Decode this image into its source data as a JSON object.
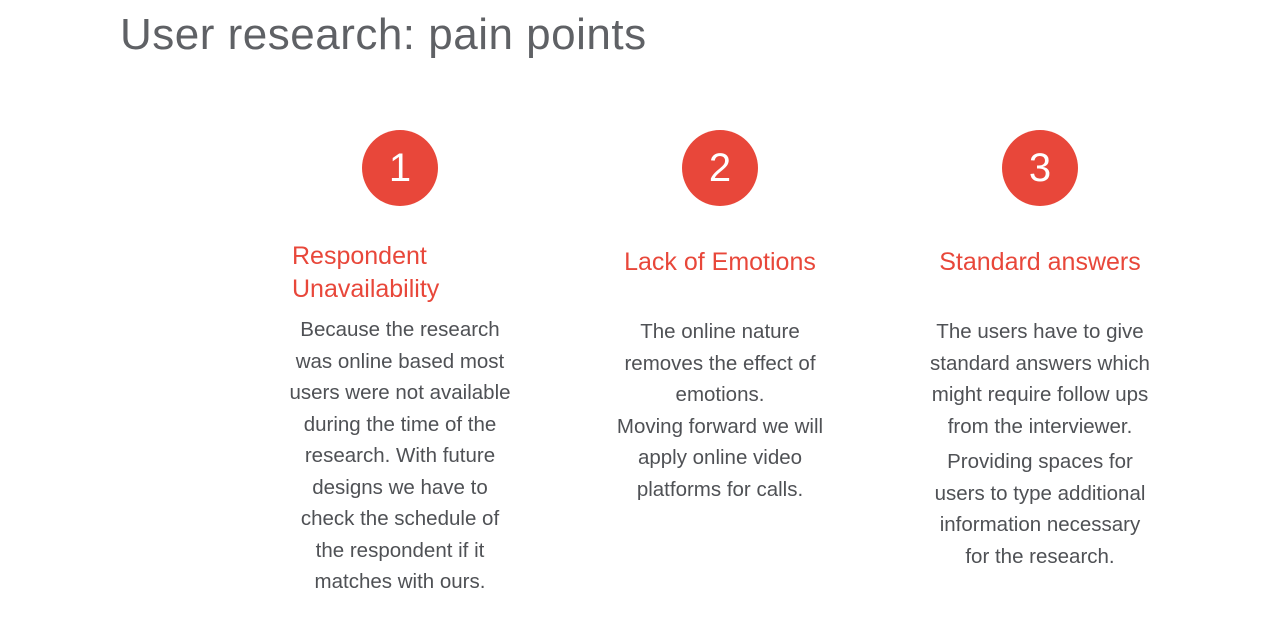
{
  "slide": {
    "title": "User research: pain points"
  },
  "points": [
    {
      "number": "1",
      "heading_lines": [
        "Respondent",
        "Unavailability"
      ],
      "paragraphs": [
        [
          "Because the research",
          "was online based most",
          "users were not available",
          "during the time of the",
          "research. With future",
          "designs we have to",
          "check the schedule of",
          "the respondent if it",
          "matches with ours."
        ]
      ]
    },
    {
      "number": "2",
      "heading_lines": [
        "Lack of Emotions"
      ],
      "paragraphs": [
        [
          "The online nature",
          "removes the effect of",
          "emotions."
        ],
        [
          "Moving forward we will",
          "apply online video",
          "platforms for calls."
        ]
      ]
    },
    {
      "number": "3",
      "heading_lines": [
        "Standard answers"
      ],
      "paragraphs": [
        [
          "The users have to give",
          "standard answers which",
          "might require follow ups",
          "from the interviewer."
        ],
        [
          "Providing spaces for",
          "users to type additional",
          "information necessary",
          "for the research."
        ]
      ]
    }
  ],
  "colors": {
    "accent": "#e8473a",
    "title": "#5f6165",
    "body": "#4f5155"
  }
}
